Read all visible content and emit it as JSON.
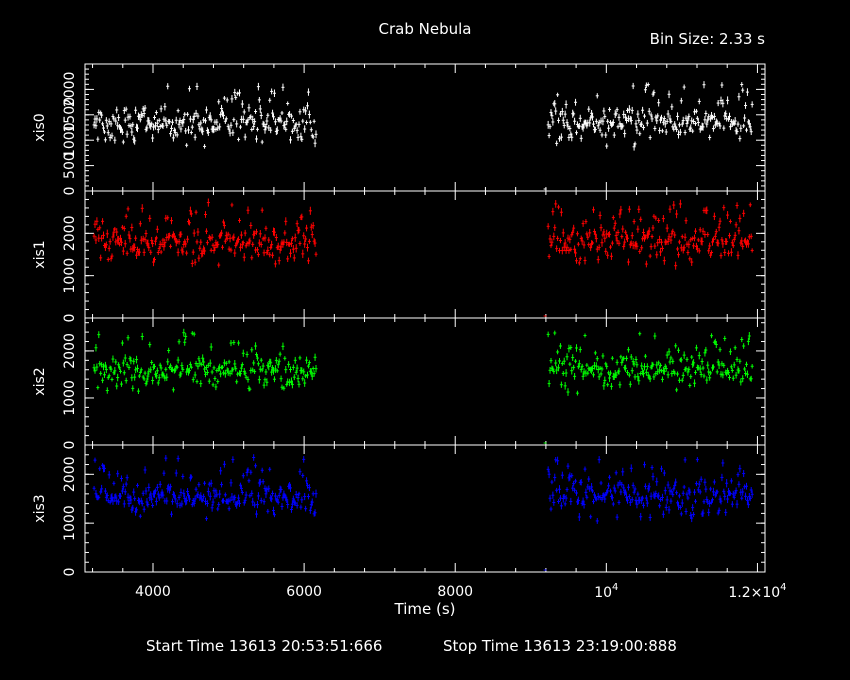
{
  "header": {
    "title": "Crab Nebula",
    "bin_size": "Bin Size: 2.33 s"
  },
  "footer": {
    "start_time": "Start Time 13613 20:53:51:666",
    "stop_time": "Stop Time 13613 23:19:00:888"
  },
  "chart_data": {
    "type": "scatter",
    "xlabel": "Time (s)",
    "xlim": [
      3100,
      12100
    ],
    "x_ticks": [
      {
        "value": 4000,
        "base": "4000",
        "exp": ""
      },
      {
        "value": 6000,
        "base": "6000",
        "exp": ""
      },
      {
        "value": 8000,
        "base": "8000",
        "exp": ""
      },
      {
        "value": 10000,
        "base": "10",
        "exp": "4"
      },
      {
        "value": 12000,
        "base": "1.2×10",
        "exp": "4"
      }
    ],
    "segments": [
      [
        3220,
        6160
      ],
      [
        9230,
        11940
      ]
    ],
    "panels": [
      {
        "name": "xis0",
        "color": "#ffffff",
        "ylim": [
          0,
          2500
        ],
        "y_ticks": [
          {
            "value": 0,
            "label": "0"
          },
          {
            "value": 500,
            "label": "500"
          },
          {
            "value": 1000,
            "label": "1000"
          },
          {
            "value": 1500,
            "label": "1500"
          },
          {
            "value": 2000,
            "label": "2000"
          }
        ],
        "mean": 1350,
        "scatter": 160
      },
      {
        "name": "xis1",
        "color": "#ff0000",
        "ylim": [
          0,
          3000
        ],
        "y_ticks": [
          {
            "value": 0,
            "label": "0"
          },
          {
            "value": 1000,
            "label": "1000"
          },
          {
            "value": 2000,
            "label": "2000"
          }
        ],
        "mean": 1800,
        "scatter": 200
      },
      {
        "name": "xis2",
        "color": "#00ff00",
        "ylim": [
          0,
          2700
        ],
        "y_ticks": [
          {
            "value": 0,
            "label": "0"
          },
          {
            "value": 1000,
            "label": "1000"
          },
          {
            "value": 2000,
            "label": "2000"
          }
        ],
        "mean": 1600,
        "scatter": 170
      },
      {
        "name": "xis3",
        "color": "#0000ff",
        "ylim": [
          0,
          2600
        ],
        "y_ticks": [
          {
            "value": 0,
            "label": "0"
          },
          {
            "value": 1000,
            "label": "1000"
          },
          {
            "value": 2000,
            "label": "2000"
          }
        ],
        "mean": 1550,
        "scatter": 170
      }
    ]
  }
}
